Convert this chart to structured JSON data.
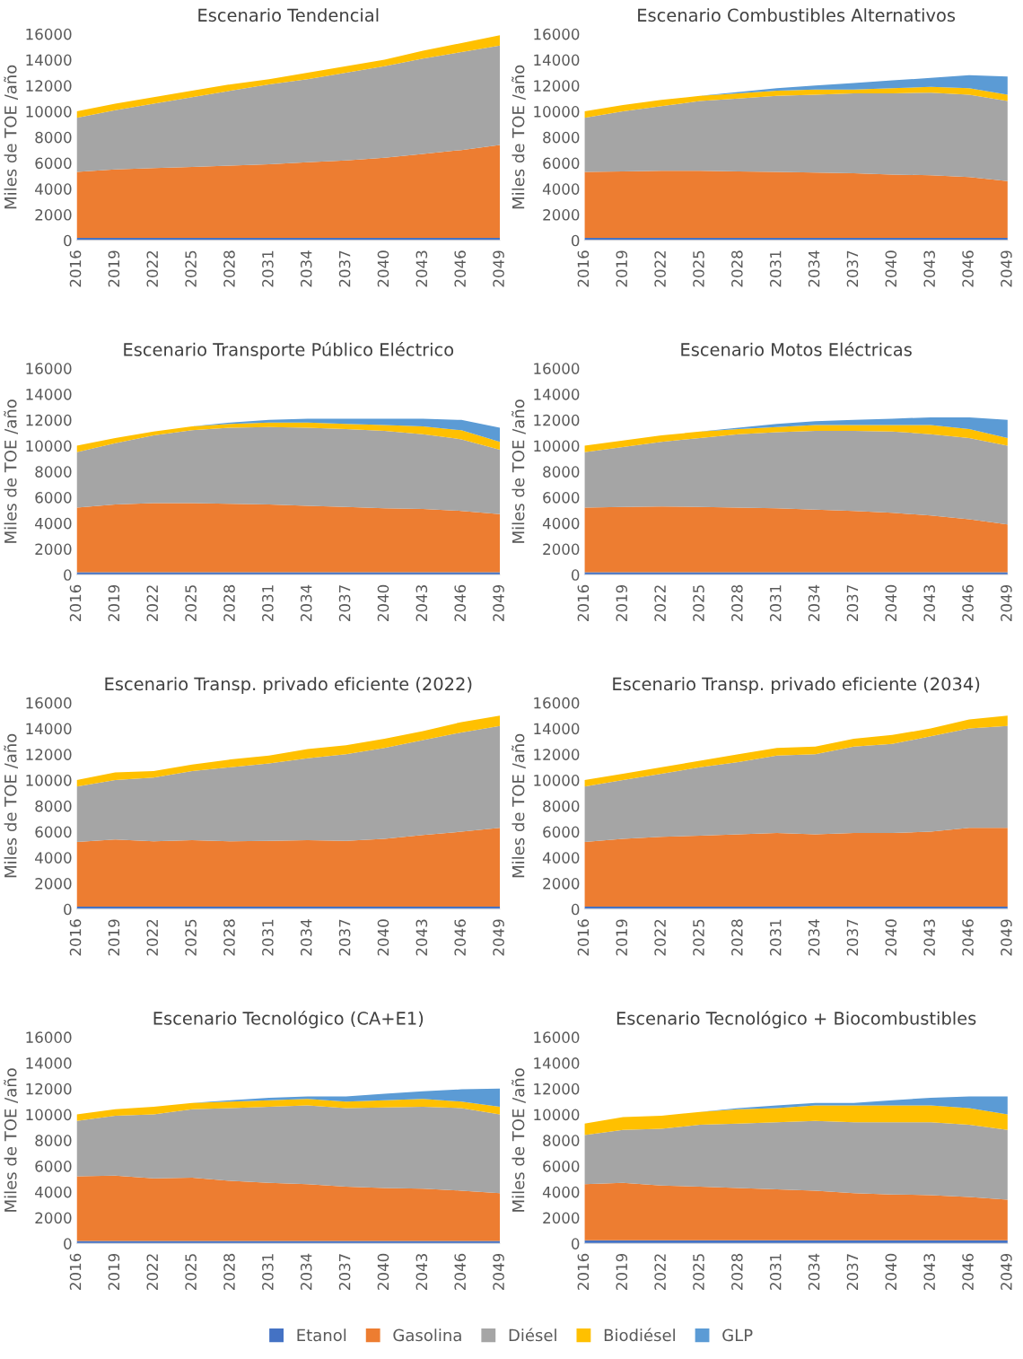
{
  "chart_data": [
    {
      "type": "area",
      "stacked": true,
      "title": "Escenario Tendencial",
      "ylabel": "Miles de TOE /año",
      "x": [
        2016,
        2019,
        2022,
        2025,
        2028,
        2031,
        2034,
        2037,
        2040,
        2043,
        2046,
        2049
      ],
      "xlim": [
        2016,
        2049
      ],
      "xticks": [
        2016,
        2019,
        2022,
        2025,
        2028,
        2031,
        2034,
        2037,
        2040,
        2043,
        2046,
        2049
      ],
      "ylim": [
        0,
        16000
      ],
      "yticks": [
        0,
        2000,
        4000,
        6000,
        8000,
        10000,
        12000,
        14000,
        16000
      ],
      "series": [
        {
          "color": "#4472c4",
          "values": [
            200,
            200,
            200,
            200,
            200,
            200,
            200,
            200,
            200,
            200,
            200,
            200
          ]
        },
        {
          "color": "#ed7d31",
          "values": [
            5100,
            5300,
            5400,
            5500,
            5600,
            5700,
            5850,
            6000,
            6200,
            6500,
            6800,
            7200
          ]
        },
        {
          "color": "#a5a5a5",
          "values": [
            4200,
            4600,
            5000,
            5400,
            5800,
            6200,
            6450,
            6800,
            7100,
            7400,
            7600,
            7700
          ]
        },
        {
          "color": "#ffc000",
          "values": [
            500,
            500,
            500,
            500,
            500,
            400,
            500,
            500,
            500,
            600,
            700,
            800
          ]
        }
      ]
    },
    {
      "type": "area",
      "stacked": true,
      "title": "Escenario Combustibles Alternativos",
      "ylabel": "Miles de TOE /año",
      "x": [
        2016,
        2019,
        2022,
        2025,
        2028,
        2031,
        2034,
        2037,
        2040,
        2043,
        2046,
        2049
      ],
      "xlim": [
        2016,
        2049
      ],
      "xticks": [
        2016,
        2019,
        2022,
        2025,
        2028,
        2031,
        2034,
        2037,
        2040,
        2043,
        2046,
        2049
      ],
      "ylim": [
        0,
        16000
      ],
      "yticks": [
        0,
        2000,
        4000,
        6000,
        8000,
        10000,
        12000,
        14000,
        16000
      ],
      "series": [
        {
          "color": "#4472c4",
          "values": [
            200,
            200,
            200,
            200,
            200,
            200,
            200,
            200,
            200,
            200,
            200,
            200
          ]
        },
        {
          "color": "#ed7d31",
          "values": [
            5100,
            5150,
            5200,
            5200,
            5150,
            5100,
            5050,
            5000,
            4900,
            4850,
            4700,
            4400
          ]
        },
        {
          "color": "#a5a5a5",
          "values": [
            4200,
            4650,
            5000,
            5400,
            5650,
            5900,
            6050,
            6200,
            6300,
            6400,
            6400,
            6200
          ]
        },
        {
          "color": "#ffc000",
          "values": [
            500,
            500,
            500,
            400,
            400,
            400,
            400,
            300,
            400,
            450,
            500,
            500
          ]
        },
        {
          "color": "#5b9bd5",
          "values": [
            0,
            0,
            0,
            0,
            100,
            200,
            300,
            500,
            600,
            700,
            1000,
            1400
          ]
        }
      ]
    },
    {
      "type": "area",
      "stacked": true,
      "title": "Escenario Transporte Público Eléctrico",
      "ylabel": "Miles de TOE /año",
      "x": [
        2016,
        2019,
        2022,
        2025,
        2028,
        2031,
        2034,
        2037,
        2040,
        2043,
        2046,
        2049
      ],
      "xlim": [
        2016,
        2049
      ],
      "xticks": [
        2016,
        2019,
        2022,
        2025,
        2028,
        2031,
        2034,
        2037,
        2040,
        2043,
        2046,
        2049
      ],
      "ylim": [
        0,
        16000
      ],
      "yticks": [
        0,
        2000,
        4000,
        6000,
        8000,
        10000,
        12000,
        14000,
        16000
      ],
      "series": [
        {
          "color": "#4472c4",
          "values": [
            200,
            200,
            200,
            200,
            200,
            200,
            200,
            200,
            200,
            200,
            200,
            200
          ]
        },
        {
          "color": "#ed7d31",
          "values": [
            5000,
            5250,
            5350,
            5350,
            5300,
            5250,
            5150,
            5050,
            4950,
            4900,
            4750,
            4500
          ]
        },
        {
          "color": "#a5a5a5",
          "values": [
            4300,
            4750,
            5250,
            5650,
            5900,
            6000,
            6050,
            6050,
            6000,
            5800,
            5550,
            5000
          ]
        },
        {
          "color": "#ffc000",
          "values": [
            500,
            400,
            300,
            300,
            300,
            350,
            400,
            400,
            450,
            600,
            700,
            600
          ]
        },
        {
          "color": "#5b9bd5",
          "values": [
            0,
            0,
            0,
            0,
            100,
            200,
            300,
            400,
            500,
            600,
            800,
            1100
          ]
        }
      ]
    },
    {
      "type": "area",
      "stacked": true,
      "title": "Escenario Motos Eléctricas",
      "ylabel": "Miles de TOE /año",
      "x": [
        2016,
        2019,
        2022,
        2025,
        2028,
        2031,
        2034,
        2037,
        2040,
        2043,
        2046,
        2049
      ],
      "xlim": [
        2016,
        2049
      ],
      "xticks": [
        2016,
        2019,
        2022,
        2025,
        2028,
        2031,
        2034,
        2037,
        2040,
        2043,
        2046,
        2049
      ],
      "ylim": [
        0,
        16000
      ],
      "yticks": [
        0,
        2000,
        4000,
        6000,
        8000,
        10000,
        12000,
        14000,
        16000
      ],
      "series": [
        {
          "color": "#4472c4",
          "values": [
            200,
            200,
            200,
            200,
            200,
            200,
            200,
            200,
            200,
            200,
            200,
            200
          ]
        },
        {
          "color": "#ed7d31",
          "values": [
            5000,
            5050,
            5100,
            5050,
            5000,
            4950,
            4850,
            4750,
            4600,
            4400,
            4100,
            3700
          ]
        },
        {
          "color": "#a5a5a5",
          "values": [
            4300,
            4650,
            5000,
            5350,
            5700,
            5900,
            6100,
            6200,
            6300,
            6300,
            6300,
            6100
          ]
        },
        {
          "color": "#ffc000",
          "values": [
            500,
            500,
            500,
            500,
            400,
            400,
            450,
            450,
            500,
            700,
            700,
            600
          ]
        },
        {
          "color": "#5b9bd5",
          "values": [
            0,
            0,
            0,
            0,
            100,
            250,
            300,
            400,
            500,
            600,
            900,
            1400
          ]
        }
      ]
    },
    {
      "type": "area",
      "stacked": true,
      "title": "Escenario Transp. privado eficiente (2022)",
      "ylabel": "Miles de TOE /año",
      "x": [
        2016,
        2019,
        2022,
        2025,
        2028,
        2031,
        2034,
        2037,
        2040,
        2043,
        2046,
        2049
      ],
      "xlim": [
        2016,
        2049
      ],
      "xticks": [
        2016,
        2019,
        2022,
        2025,
        2028,
        2031,
        2034,
        2037,
        2040,
        2043,
        2046,
        2049
      ],
      "ylim": [
        0,
        16000
      ],
      "yticks": [
        0,
        2000,
        4000,
        6000,
        8000,
        10000,
        12000,
        14000,
        16000
      ],
      "series": [
        {
          "color": "#4472c4",
          "values": [
            200,
            200,
            200,
            200,
            200,
            200,
            200,
            200,
            200,
            200,
            200,
            200
          ]
        },
        {
          "color": "#ed7d31",
          "values": [
            5000,
            5200,
            5050,
            5150,
            5050,
            5100,
            5150,
            5100,
            5250,
            5550,
            5800,
            6100
          ]
        },
        {
          "color": "#a5a5a5",
          "values": [
            4300,
            4600,
            4950,
            5350,
            5750,
            6000,
            6350,
            6700,
            7050,
            7350,
            7700,
            7900
          ]
        },
        {
          "color": "#ffc000",
          "values": [
            500,
            600,
            500,
            500,
            600,
            600,
            700,
            700,
            700,
            700,
            800,
            800
          ]
        }
      ]
    },
    {
      "type": "area",
      "stacked": true,
      "title": "Escenario Transp. privado eficiente (2034)",
      "ylabel": "Miles de TOE /año",
      "x": [
        2016,
        2019,
        2022,
        2025,
        2028,
        2031,
        2034,
        2037,
        2040,
        2043,
        2046,
        2049
      ],
      "xlim": [
        2016,
        2049
      ],
      "xticks": [
        2016,
        2019,
        2022,
        2025,
        2028,
        2031,
        2034,
        2037,
        2040,
        2043,
        2046,
        2049
      ],
      "ylim": [
        0,
        16000
      ],
      "yticks": [
        0,
        2000,
        4000,
        6000,
        8000,
        10000,
        12000,
        14000,
        16000
      ],
      "series": [
        {
          "color": "#4472c4",
          "values": [
            200,
            200,
            200,
            200,
            200,
            200,
            200,
            200,
            200,
            200,
            200,
            200
          ]
        },
        {
          "color": "#ed7d31",
          "values": [
            5000,
            5250,
            5400,
            5500,
            5600,
            5700,
            5600,
            5700,
            5700,
            5800,
            6100,
            6100
          ]
        },
        {
          "color": "#a5a5a5",
          "values": [
            4300,
            4550,
            4900,
            5300,
            5600,
            6000,
            6200,
            6700,
            6900,
            7400,
            7700,
            7900
          ]
        },
        {
          "color": "#ffc000",
          "values": [
            500,
            500,
            500,
            500,
            600,
            600,
            600,
            600,
            700,
            600,
            700,
            800
          ]
        }
      ]
    },
    {
      "type": "area",
      "stacked": true,
      "title": "Escenario Tecnológico (CA+E1)",
      "ylabel": "Miles de TOE /año",
      "x": [
        2016,
        2019,
        2022,
        2025,
        2028,
        2031,
        2034,
        2037,
        2040,
        2043,
        2046,
        2049
      ],
      "xlim": [
        2016,
        2049
      ],
      "xticks": [
        2016,
        2019,
        2022,
        2025,
        2028,
        2031,
        2034,
        2037,
        2040,
        2043,
        2046,
        2049
      ],
      "ylim": [
        0,
        16000
      ],
      "yticks": [
        0,
        2000,
        4000,
        6000,
        8000,
        10000,
        12000,
        14000,
        16000
      ],
      "series": [
        {
          "color": "#4472c4",
          "values": [
            200,
            200,
            200,
            200,
            200,
            200,
            200,
            200,
            200,
            200,
            200,
            200
          ]
        },
        {
          "color": "#ed7d31",
          "values": [
            5000,
            5050,
            4850,
            4900,
            4650,
            4500,
            4400,
            4200,
            4100,
            4050,
            3900,
            3700
          ]
        },
        {
          "color": "#a5a5a5",
          "values": [
            4300,
            4650,
            4950,
            5300,
            5650,
            5900,
            6100,
            6100,
            6250,
            6350,
            6400,
            6100
          ]
        },
        {
          "color": "#ffc000",
          "values": [
            500,
            500,
            600,
            500,
            500,
            500,
            500,
            500,
            550,
            600,
            500,
            600
          ]
        },
        {
          "color": "#5b9bd5",
          "values": [
            0,
            0,
            0,
            0,
            100,
            200,
            200,
            400,
            500,
            600,
            950,
            1400
          ]
        }
      ]
    },
    {
      "type": "area",
      "stacked": true,
      "title": "Escenario Tecnológico + Biocombustibles",
      "ylabel": "Miles de TOE /año",
      "legend": "bottom",
      "x": [
        2016,
        2019,
        2022,
        2025,
        2028,
        2031,
        2034,
        2037,
        2040,
        2043,
        2046,
        2049
      ],
      "xlim": [
        2016,
        2049
      ],
      "xticks": [
        2016,
        2019,
        2022,
        2025,
        2028,
        2031,
        2034,
        2037,
        2040,
        2043,
        2046,
        2049
      ],
      "ylim": [
        0,
        16000
      ],
      "yticks": [
        0,
        2000,
        4000,
        6000,
        8000,
        10000,
        12000,
        14000,
        16000
      ],
      "series": [
        {
          "name": "Etanol",
          "color": "#4472c4",
          "values": [
            250,
            250,
            250,
            250,
            250,
            250,
            250,
            250,
            250,
            250,
            250,
            250
          ]
        },
        {
          "name": "Gasolina",
          "color": "#ed7d31",
          "values": [
            4350,
            4450,
            4250,
            4150,
            4050,
            3950,
            3850,
            3650,
            3550,
            3500,
            3350,
            3150
          ]
        },
        {
          "name": "Diésel",
          "color": "#a5a5a5",
          "values": [
            3800,
            4100,
            4400,
            4800,
            5000,
            5200,
            5400,
            5500,
            5600,
            5650,
            5600,
            5400
          ]
        },
        {
          "name": "Biodiésel",
          "color": "#ffc000",
          "values": [
            900,
            1000,
            1000,
            1000,
            1100,
            1100,
            1200,
            1300,
            1300,
            1300,
            1300,
            1200
          ]
        },
        {
          "name": "GLP",
          "color": "#5b9bd5",
          "values": [
            0,
            0,
            0,
            0,
            100,
            200,
            200,
            200,
            400,
            600,
            900,
            1400
          ]
        }
      ]
    }
  ]
}
